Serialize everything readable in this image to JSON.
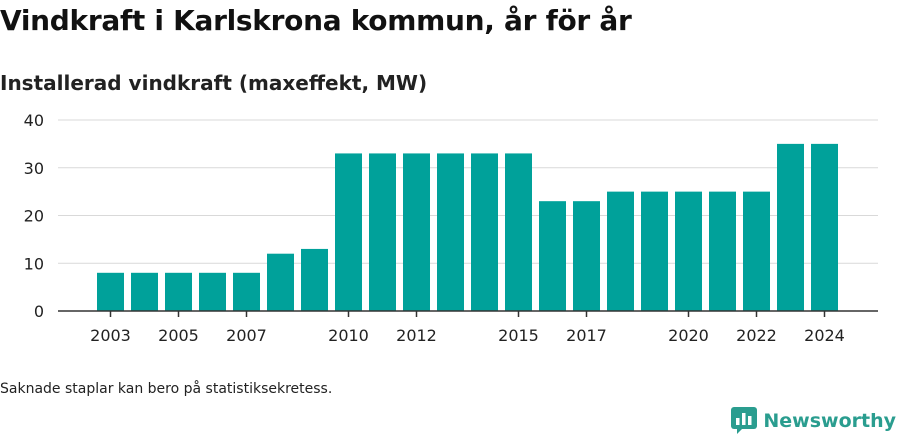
{
  "title": "Vindkraft i Karlskrona kommun, år för år",
  "subtitle": "Installerad vindkraft (maxeffekt, MW)",
  "note": "Saknade staplar kan bero på statistiksekretess.",
  "brand": {
    "name": "Newsworthy",
    "icon": "newsworthy-logo-icon"
  },
  "colors": {
    "bar": "#00a19a",
    "grid": "#d9d9d9",
    "axis": "#333333",
    "brand": "#2a9d8f"
  },
  "chart_data": {
    "type": "bar",
    "categories": [
      "2003",
      "2004",
      "2005",
      "2006",
      "2007",
      "2008",
      "2009",
      "2010",
      "2011",
      "2012",
      "2013",
      "2014",
      "2015",
      "2016",
      "2017",
      "2018",
      "2019",
      "2020",
      "2021",
      "2022",
      "2023",
      "2024"
    ],
    "values": [
      8,
      8,
      8,
      8,
      8,
      12,
      13,
      33,
      33,
      33,
      33,
      33,
      33,
      23,
      23,
      25,
      25,
      25,
      25,
      25,
      35,
      35
    ],
    "x_tick_labels": [
      "2003",
      "2005",
      "2007",
      "2010",
      "2012",
      "2015",
      "2017",
      "2020",
      "2022",
      "2024"
    ],
    "y_ticks": [
      0,
      10,
      20,
      30,
      40
    ],
    "ylim": [
      0,
      40
    ],
    "xlabel": "",
    "ylabel": "",
    "grid": true
  }
}
